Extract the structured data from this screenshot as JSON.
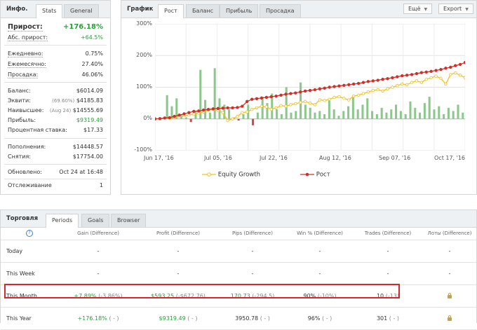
{
  "info": {
    "title": "Инфо.",
    "tabs": [
      "Stats",
      "General"
    ],
    "growth_label": "Прирост:",
    "growth_value": "+176.18%",
    "abs_label": "Абс. прирост:",
    "abs_value": "+64.5%",
    "daily_label": "Ежедневно:",
    "daily_value": "0.75%",
    "monthly_label": "Ежемесячно:",
    "monthly_value": "27.40%",
    "drawdown_label": "Просадка:",
    "drawdown_value": "46.06%",
    "balance_label": "Баланс:",
    "balance_value": "$6014.09",
    "equity_label": "Эквити:",
    "equity_pct": "(69.60%)",
    "equity_value": "$4185.83",
    "highest_label": "Наивысшее:",
    "highest_date": "(Aug 24)",
    "highest_value": "$14555.69",
    "profit_label": "Прибыль:",
    "profit_value": "$9319.49",
    "interest_label": "Процентная ставка:",
    "interest_value": "$17.33",
    "deposits_label": "Пополнения:",
    "deposits_value": "$14448.57",
    "withdrawals_label": "Снятия:",
    "withdrawals_value": "$17754.00",
    "updated_label": "Обновлено:",
    "updated_value": "Oct 24 at 16:48",
    "tracking_label": "Отслеживание",
    "tracking_value": "1"
  },
  "chart_panel": {
    "title": "График",
    "tabs": [
      "Рост",
      "Баланс",
      "Прибыль",
      "Просадка"
    ],
    "more_label": "Ещё",
    "export_label": "Export"
  },
  "chart_data": {
    "type": "line",
    "y_ticks": [
      "300%",
      "200%",
      "100%",
      "0%",
      "-100%"
    ],
    "ylim": [
      -100,
      300
    ],
    "x_ticks": [
      "Jun 17, '16",
      "Jul 05, '16",
      "Jul 22, '16",
      "Aug 12, '16",
      "Sep 07, '16",
      "Oct 17, '16"
    ],
    "grid": true,
    "legend_position": "bottom",
    "series": [
      {
        "name": "Equity Growth",
        "color": "#f0c020",
        "values": [
          0,
          1,
          3,
          2,
          5,
          8,
          10,
          12,
          15,
          18,
          22,
          28,
          30,
          26,
          20,
          -5,
          0,
          8,
          20,
          22,
          30,
          35,
          40,
          38,
          30,
          35,
          42,
          40,
          45,
          48,
          52,
          55,
          50,
          45,
          60,
          58,
          62,
          68,
          70,
          65,
          60,
          72,
          75,
          80,
          85,
          90,
          92,
          88,
          95,
          100,
          105,
          110,
          108,
          115,
          120,
          115,
          125,
          130,
          135,
          128,
          110,
          140,
          145,
          138,
          130
        ]
      },
      {
        "name": "Рост",
        "color": "#d0302a",
        "values": [
          0,
          1,
          3,
          4,
          8,
          12,
          16,
          20,
          24,
          25,
          28,
          30,
          32,
          33,
          34,
          35,
          35,
          36,
          40,
          55,
          62,
          64,
          66,
          68,
          70,
          72,
          75,
          78,
          80,
          82,
          85,
          88,
          90,
          92,
          95,
          97,
          100,
          102,
          104,
          106,
          108,
          110,
          112,
          115,
          118,
          120,
          122,
          125,
          127,
          130,
          133,
          136,
          138,
          140,
          143,
          146,
          148,
          150,
          153,
          156,
          160,
          163,
          168,
          172,
          178
        ]
      },
      {
        "name": "bars",
        "color": "#8cc88c",
        "values": [
          0,
          2,
          75,
          40,
          65,
          15,
          5,
          -10,
          25,
          155,
          60,
          20,
          160,
          65,
          45,
          30,
          5,
          -5,
          15,
          45,
          -20,
          20,
          70,
          50,
          80,
          30,
          15,
          100,
          20,
          25,
          115,
          45,
          35,
          20,
          25,
          15,
          60,
          30,
          10,
          25,
          40,
          70,
          30,
          45,
          65,
          25,
          15,
          35,
          20,
          30,
          45,
          25,
          15,
          55,
          35,
          20,
          50,
          70,
          30,
          40,
          15,
          35,
          25,
          45,
          20
        ]
      }
    ]
  },
  "trading": {
    "title": "Торговля",
    "tabs": [
      "Periods",
      "Goals",
      "Browser"
    ],
    "headers": [
      "?",
      "Gain (Difference)",
      "Profit (Difference)",
      "Pips (Difference)",
      "Win % (Difference)",
      "Trades (Difference)",
      "Лоты (Difference)"
    ],
    "rows": [
      {
        "name": "Today",
        "gain": "-",
        "gain_diff": "",
        "profit": "-",
        "profit_diff": "",
        "pips": "-",
        "pips_diff": "",
        "win": "-",
        "win_diff": "",
        "trades": "-",
        "trades_diff": "",
        "lots": "-"
      },
      {
        "name": "This Week",
        "gain": "-",
        "gain_diff": "",
        "profit": "-",
        "profit_diff": "",
        "pips": "-",
        "pips_diff": "",
        "win": "-",
        "win_diff": "",
        "trades": "-",
        "trades_diff": "",
        "lots": "-"
      },
      {
        "name": "This Month",
        "gain": "+7.89%",
        "gain_diff": "(-3.86%)",
        "profit": "$593.25",
        "profit_diff": "(-$672.76)",
        "pips": "170.73",
        "pips_diff": "(-294.5)",
        "win": "90%",
        "win_diff": "(-10%)",
        "trades": "10",
        "trades_diff": "(-13)",
        "lots": "lock"
      },
      {
        "name": "This Year",
        "gain": "+176.18%",
        "gain_diff": "( - )",
        "profit": "$9319.49",
        "profit_diff": "( - )",
        "pips": "3950.78",
        "pips_diff": "( - )",
        "win": "96%",
        "win_diff": "( - )",
        "trades": "301",
        "trades_diff": "( - )",
        "lots": "lock"
      }
    ]
  }
}
